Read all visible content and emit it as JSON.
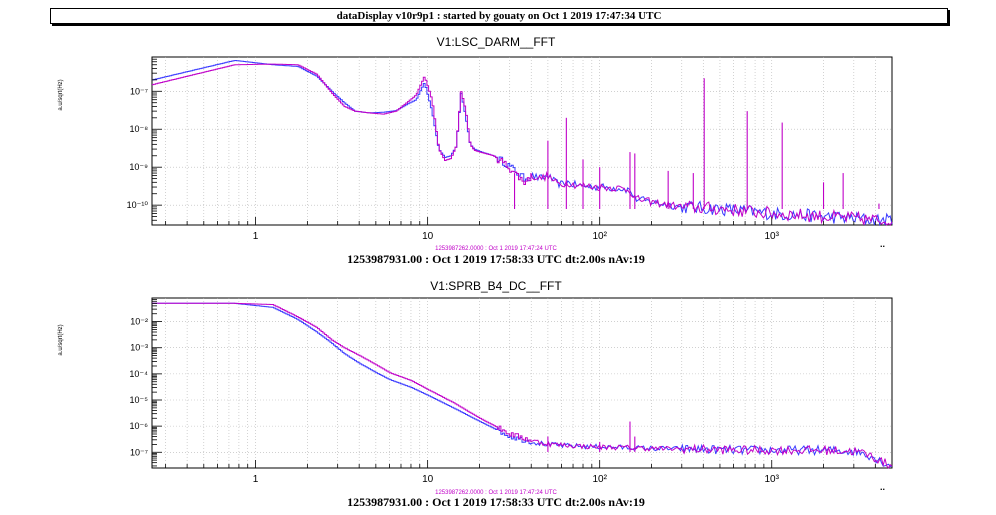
{
  "window": {
    "title": "dataDisplay v10r9p1 : started by gouaty on Oct  1 2019 17:47:34 UTC"
  },
  "colors": {
    "blue_trace": "#3a3aff",
    "magenta_trace": "#c000c8",
    "grid": "#b0b0b0"
  },
  "chart_data": [
    {
      "type": "line",
      "title": "V1:LSC_DARM__FFT",
      "ylabel": "a.u/sqrt(Hz)",
      "xlabel": "1253987931.00 : Oct  1 2019 17:58:33 UTC dt:2.00s nAv:19",
      "reference_label": "1253987262.0000 : Oct  1 2019 17:47:24 UTC",
      "x_scale": "log",
      "y_scale": "log",
      "xlim": [
        0.25,
        5000
      ],
      "ylim": [
        3e-11,
        8e-07
      ],
      "x_ticks": [
        {
          "v": 1,
          "label": "1"
        },
        {
          "v": 10,
          "label": "10"
        },
        {
          "v": 100,
          "label": "10²"
        },
        {
          "v": 1000,
          "label": "10³"
        }
      ],
      "y_ticks": [
        {
          "v": 1e-07,
          "label": "10⁻⁷"
        },
        {
          "v": 1e-08,
          "label": "10⁻⁸"
        },
        {
          "v": 1e-09,
          "label": "10⁻⁹"
        },
        {
          "v": 1e-10,
          "label": "10⁻¹⁰"
        }
      ],
      "x_corner_label": "..",
      "series": [
        {
          "color": "#3a3aff",
          "x": [
            0.25,
            0.75,
            1.25,
            1.75,
            2.25,
            2.75,
            3.25,
            3.75,
            4.5,
            5.5,
            6.5,
            7.5,
            8.5,
            9.5,
            10.5,
            11.5,
            12.5,
            13.5,
            14.5,
            15.5,
            16.5,
            17.5,
            18.5,
            20,
            24,
            28,
            32,
            36,
            40,
            45,
            50,
            55,
            60,
            65,
            70,
            80,
            100,
            130,
            150,
            160,
            200,
            300,
            500,
            700,
            1000,
            1500,
            2000,
            3000,
            4000,
            5000
          ],
          "y": [
            2e-07,
            6.5e-07,
            5e-07,
            4.5e-07,
            2.5e-07,
            1e-07,
            5e-08,
            3e-08,
            2.7e-08,
            2.8e-08,
            3.1e-08,
            4.5e-08,
            6e-08,
            1.7e-07,
            3e-08,
            3e-09,
            1.8e-09,
            2e-09,
            3.5e-09,
            9e-08,
            2e-08,
            4e-09,
            3e-09,
            2.6e-09,
            2e-09,
            1.3e-09,
            8e-10,
            5e-10,
            6e-10,
            5e-10,
            6e-10,
            4e-10,
            3.5e-10,
            4e-10,
            3.5e-10,
            3.2e-10,
            3e-10,
            2.8e-10,
            2.5e-10,
            1.5e-10,
            1.2e-10,
            9e-11,
            8e-11,
            7e-11,
            6e-11,
            5.5e-11,
            5e-11,
            4.5e-11,
            4e-11,
            4e-11
          ]
        },
        {
          "color": "#c000c8",
          "x": [
            0.25,
            0.75,
            1.25,
            1.75,
            2.25,
            2.75,
            3.25,
            3.75,
            4.5,
            5.5,
            6.5,
            7.5,
            8.5,
            9.5,
            10.5,
            11.5,
            12.5,
            13.5,
            14.5,
            15.5,
            16.5,
            17.5,
            18.5,
            20,
            24,
            28,
            32,
            36,
            40,
            45,
            50,
            55,
            60,
            65,
            70,
            80,
            100,
            130,
            150,
            160,
            200,
            300,
            500,
            700,
            1000,
            1500,
            2000,
            3000,
            4000,
            5000
          ],
          "y": [
            1.5e-07,
            5e-07,
            5.2e-07,
            5e-07,
            2.8e-07,
            9e-08,
            4e-08,
            3e-08,
            2.7e-08,
            2.5e-08,
            3e-08,
            5e-08,
            8e-08,
            2.5e-07,
            6e-08,
            3e-09,
            1.5e-09,
            1.7e-09,
            3.5e-09,
            1e-07,
            3e-08,
            4e-09,
            2.8e-09,
            2.5e-09,
            2e-09,
            1.2e-09,
            7e-10,
            4e-10,
            6e-10,
            5e-10,
            6e-10,
            4e-10,
            3.5e-10,
            4e-10,
            3.5e-10,
            3.2e-10,
            3e-10,
            2.8e-10,
            2.5e-10,
            1.5e-10,
            1.2e-10,
            9e-11,
            8e-11,
            7e-11,
            6e-11,
            5.5e-11,
            5e-11,
            4.5e-11,
            4e-11,
            4e-11
          ]
        }
      ],
      "peaks": [
        {
          "x": 32,
          "y": 7e-10
        },
        {
          "x": 50,
          "y": 5e-09
        },
        {
          "x": 64,
          "y": 2e-08
        },
        {
          "x": 80,
          "y": 1.6e-09
        },
        {
          "x": 100,
          "y": 1e-09
        },
        {
          "x": 150,
          "y": 2.5e-09
        },
        {
          "x": 160,
          "y": 2.3e-09
        },
        {
          "x": 250,
          "y": 8e-10
        },
        {
          "x": 350,
          "y": 7e-10
        },
        {
          "x": 405,
          "y": 2.2e-07
        },
        {
          "x": 720,
          "y": 3e-08
        },
        {
          "x": 1150,
          "y": 1.5e-08
        },
        {
          "x": 2000,
          "y": 4e-10
        },
        {
          "x": 2600,
          "y": 7e-10
        },
        {
          "x": 4200,
          "y": 1.1e-10
        }
      ]
    },
    {
      "type": "line",
      "title": "V1:SPRB_B4_DC__FFT",
      "ylabel": "a.u/sqrt(Hz)",
      "xlabel": "1253987931.00 : Oct  1 2019 17:58:33 UTC dt:2.00s nAv:19",
      "reference_label": "1253987262.0000 : Oct  1 2019 17:47:24 UTC",
      "x_scale": "log",
      "y_scale": "log",
      "xlim": [
        0.25,
        5000
      ],
      "ylim": [
        2.5e-08,
        0.08
      ],
      "x_ticks": [
        {
          "v": 1,
          "label": "1"
        },
        {
          "v": 10,
          "label": "10"
        },
        {
          "v": 100,
          "label": "10²"
        },
        {
          "v": 1000,
          "label": "10³"
        }
      ],
      "y_ticks": [
        {
          "v": 0.01,
          "label": "10⁻²"
        },
        {
          "v": 0.001,
          "label": "10⁻³"
        },
        {
          "v": 0.0001,
          "label": "10⁻⁴"
        },
        {
          "v": 1e-05,
          "label": "10⁻⁵"
        },
        {
          "v": 1e-06,
          "label": "10⁻⁶"
        },
        {
          "v": 1e-07,
          "label": "10⁻⁷"
        }
      ],
      "x_corner_label": "..",
      "series": [
        {
          "color": "#3a3aff",
          "x": [
            0.25,
            0.75,
            1.25,
            1.75,
            2.25,
            2.75,
            3.25,
            4,
            5,
            6,
            8,
            10,
            14,
            20,
            30,
            40,
            50,
            60,
            80,
            100,
            150,
            200,
            400,
            700,
            1000,
            2000,
            3000,
            3500,
            4000,
            4500,
            5000
          ],
          "y": [
            0.05,
            0.05,
            0.035,
            0.012,
            0.004,
            0.0015,
            0.0006,
            0.00025,
            0.00011,
            6e-05,
            3e-05,
            1.5e-05,
            5e-06,
            1.5e-06,
            4e-07,
            2.5e-07,
            2e-07,
            1.8e-07,
            1.7e-07,
            1.6e-07,
            1.5e-07,
            1.4e-07,
            1.3e-07,
            1.2e-07,
            1.2e-07,
            1.2e-07,
            1.1e-07,
            9e-08,
            6e-08,
            4e-08,
            3e-08
          ]
        },
        {
          "color": "#c000c8",
          "x": [
            0.25,
            0.75,
            1.25,
            1.75,
            2.25,
            2.75,
            3.25,
            4,
            5,
            6,
            8,
            10,
            14,
            20,
            30,
            40,
            50,
            60,
            80,
            100,
            150,
            200,
            400,
            700,
            1000,
            2000,
            3000,
            3500,
            4000,
            4500,
            5000
          ],
          "y": [
            0.05,
            0.05,
            0.045,
            0.015,
            0.006,
            0.002,
            0.001,
            0.0005,
            0.00022,
            0.00011,
            5.5e-05,
            2.5e-05,
            8e-06,
            2e-06,
            5e-07,
            2.8e-07,
            2.1e-07,
            1.9e-07,
            1.7e-07,
            1.6e-07,
            1.5e-07,
            1.4e-07,
            1.3e-07,
            1.2e-07,
            1.2e-07,
            1.2e-07,
            1.1e-07,
            9e-08,
            6e-08,
            4e-08,
            3e-08
          ]
        }
      ],
      "peaks": [
        {
          "x": 50,
          "y": 4e-07
        },
        {
          "x": 100,
          "y": 2.5e-07
        },
        {
          "x": 150,
          "y": 1.5e-06
        },
        {
          "x": 160,
          "y": 4e-07
        }
      ]
    }
  ]
}
